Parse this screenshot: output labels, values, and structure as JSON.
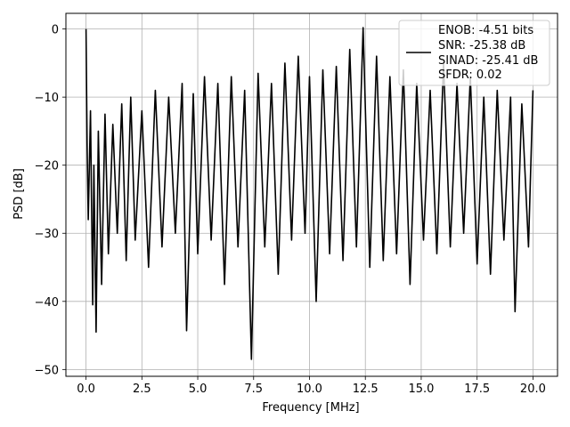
{
  "chart_data": {
    "type": "line",
    "title": "",
    "xlabel": "Frequency [MHz]",
    "ylabel": "PSD [dB]",
    "xlim": [
      -0.9,
      21.1
    ],
    "ylim": [
      -51,
      2.3
    ],
    "xticks": [
      0.0,
      2.5,
      5.0,
      7.5,
      10.0,
      12.5,
      15.0,
      17.5,
      20.0
    ],
    "xtick_labels": [
      "0.0",
      "2.5",
      "5.0",
      "7.5",
      "10.0",
      "12.5",
      "15.0",
      "17.5",
      "20.0"
    ],
    "yticks": [
      0,
      -10,
      -20,
      -30,
      -40,
      -50
    ],
    "ytick_labels": [
      "0",
      "−10",
      "−20",
      "−30",
      "−40",
      "−50"
    ],
    "grid": true,
    "legend_placement": "upper-right",
    "legend": [
      "ENOB: -4.51 bits",
      "SNR: -25.38 dB",
      "SINAD: -25.41 dB",
      "SFDR: 0.02"
    ],
    "line_color": "#000000",
    "series": [
      {
        "x": [
          0.0,
          0.05,
          0.1,
          0.2,
          0.3,
          0.35,
          0.45,
          0.55,
          0.7,
          0.85,
          1.0,
          1.2,
          1.4,
          1.6,
          1.8,
          2.0,
          2.2,
          2.5,
          2.8,
          3.1,
          3.4,
          3.7,
          4.0,
          4.3,
          4.5,
          4.8,
          5.0,
          5.3,
          5.6,
          5.9,
          6.2,
          6.5,
          6.8,
          7.1,
          7.4,
          7.7,
          8.0,
          8.3,
          8.6,
          8.9,
          9.2,
          9.5,
          9.8,
          10.0,
          10.3,
          10.6,
          10.9,
          11.2,
          11.5,
          11.8,
          12.1,
          12.4,
          12.7,
          13.0,
          13.3,
          13.6,
          13.9,
          14.2,
          14.5,
          14.8,
          15.1,
          15.4,
          15.7,
          16.0,
          16.3,
          16.6,
          16.9,
          17.2,
          17.5,
          17.8,
          18.1,
          18.4,
          18.7,
          19.0,
          19.2,
          19.5,
          19.8,
          20.0
        ],
        "y": [
          0.0,
          -17.0,
          -28.0,
          -12.0,
          -40.5,
          -20.0,
          -44.5,
          -15.0,
          -37.5,
          -12.5,
          -33.0,
          -14.0,
          -30.0,
          -11.0,
          -34.0,
          -10.0,
          -31.0,
          -12.0,
          -35.0,
          -9.0,
          -32.0,
          -10.0,
          -30.0,
          -8.0,
          -44.3,
          -9.5,
          -33.0,
          -7.0,
          -31.0,
          -8.0,
          -37.5,
          -7.0,
          -32.0,
          -9.0,
          -48.5,
          -6.5,
          -32.0,
          -8.0,
          -36.0,
          -5.0,
          -31.0,
          -4.0,
          -30.0,
          -7.0,
          -40.0,
          -6.0,
          -33.0,
          -5.5,
          -34.0,
          -3.0,
          -32.0,
          0.2,
          -35.0,
          -4.0,
          -34.0,
          -7.0,
          -33.0,
          -6.0,
          -37.5,
          -8.0,
          -31.0,
          -9.0,
          -33.0,
          -5.0,
          -32.0,
          -8.0,
          -30.0,
          -7.0,
          -34.5,
          -10.0,
          -36.0,
          -9.0,
          -31.0,
          -10.0,
          -41.5,
          -11.0,
          -32.0,
          -9.0
        ]
      }
    ]
  }
}
